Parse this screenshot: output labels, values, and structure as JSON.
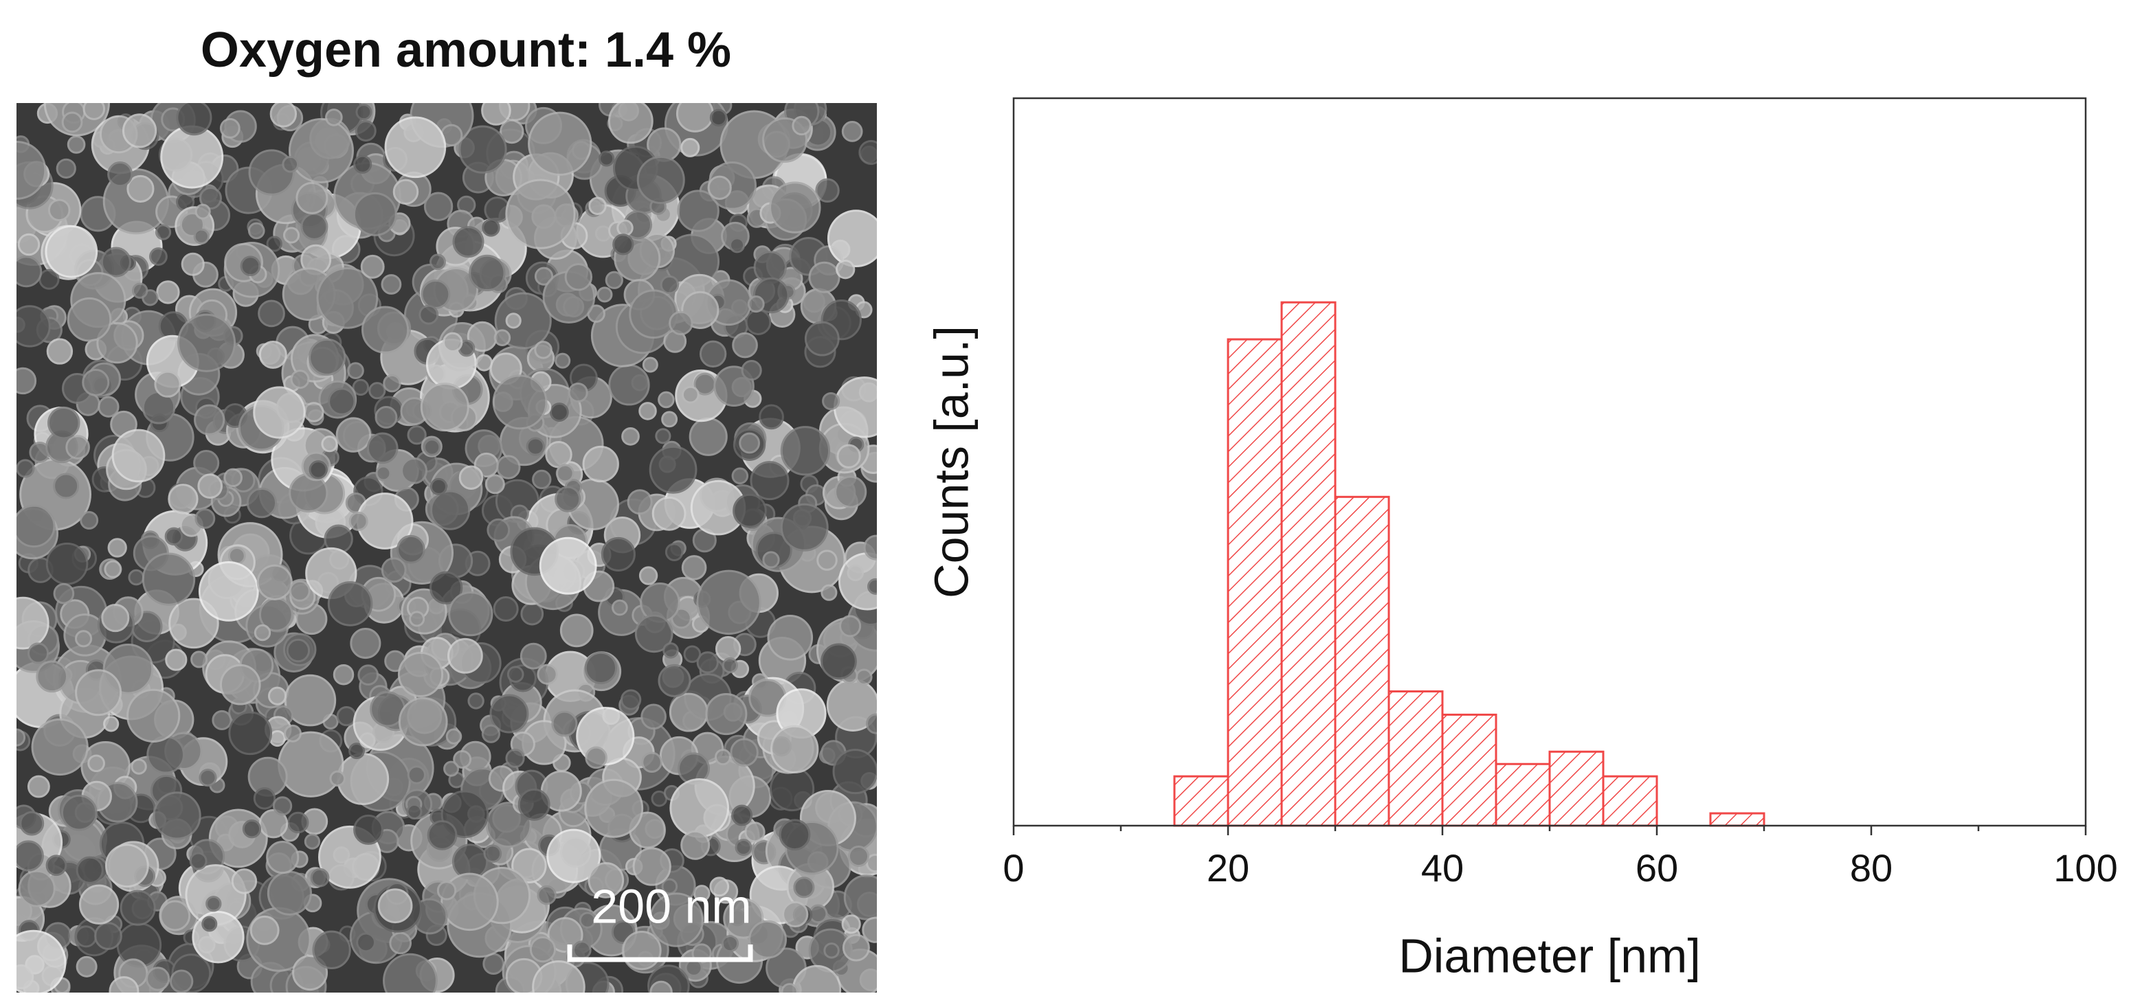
{
  "image_panel": {
    "title": "Oxygen amount: 1.4 %",
    "scale_bar": "200 nm"
  },
  "chart_data": {
    "type": "histogram",
    "bins": [
      15,
      20,
      25,
      30,
      35,
      40,
      45,
      50,
      55,
      60,
      65,
      70
    ],
    "values": [
      36,
      355,
      382,
      240,
      98,
      81,
      45,
      54,
      36,
      0,
      9
    ],
    "color": "#f04848",
    "xlim": [
      0,
      100
    ],
    "xticks": [
      0,
      20,
      40,
      60,
      80,
      100
    ],
    "xminor_ticks": [
      10,
      30,
      50,
      70,
      90
    ],
    "ylim": [
      0,
      531
    ],
    "xlabel": "Diameter [nm]",
    "ylabel": "Counts [a.u.]"
  }
}
